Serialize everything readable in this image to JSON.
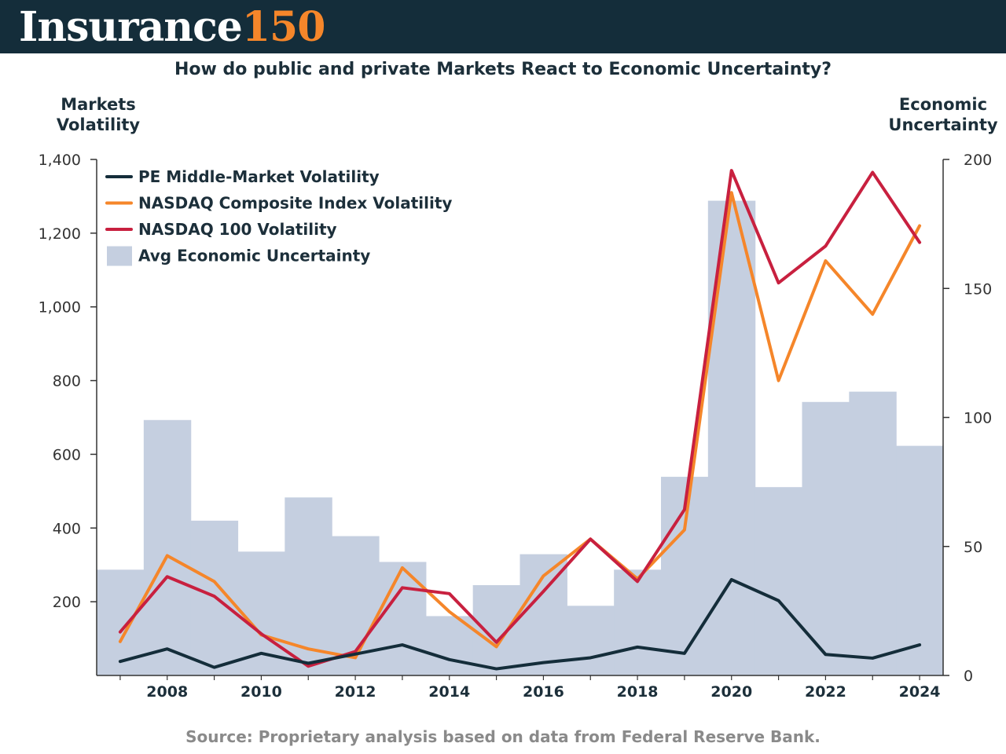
{
  "brand": {
    "name": "Insurance",
    "number": "150"
  },
  "title": "How do public and private Markets React to Economic Uncertainty?",
  "left_axis_title": "Markets\nVolatility",
  "right_axis_title": "Economic\nUncertainty",
  "source": "Source: Proprietary analysis based on data from Federal Reserve Bank.",
  "colors": {
    "header": "#142d3a",
    "brand_accent": "#f5862a",
    "pe": "#142d3a",
    "nasdaq_composite": "#f5862a",
    "nasdaq_100": "#c8203f",
    "uncertainty": "#c5cfe0"
  },
  "chart_data": {
    "type": "bar+line",
    "title": "How do public and private Markets React to Economic Uncertainty?",
    "years": [
      2007,
      2008,
      2009,
      2010,
      2011,
      2012,
      2013,
      2014,
      2015,
      2016,
      2017,
      2018,
      2019,
      2020,
      2021,
      2022,
      2023,
      2024
    ],
    "x_tick_labels": [
      "2008",
      "2010",
      "2012",
      "2014",
      "2016",
      "2018",
      "2020",
      "2022",
      "2024"
    ],
    "y_left": {
      "label": "Markets Volatility",
      "range": [
        0,
        1400
      ],
      "ticks": [
        200,
        400,
        600,
        800,
        1000,
        1200,
        1400
      ],
      "tick_labels": [
        "200",
        "400",
        "600",
        "800",
        "1,000",
        "1,200",
        "1,400"
      ]
    },
    "y_right": {
      "label": "Economic Uncertainty",
      "range": [
        0,
        200
      ],
      "ticks": [
        0,
        50,
        100,
        150,
        200
      ],
      "tick_labels": [
        "0",
        "50",
        "100",
        "150",
        "200"
      ]
    },
    "bars": {
      "name": "Avg Economic Uncertainty",
      "axis": "right",
      "values": [
        41,
        99,
        60,
        48,
        69,
        54,
        44,
        23,
        35,
        47,
        27,
        41,
        77,
        184,
        73,
        106,
        110,
        89
      ]
    },
    "series": [
      {
        "name": "PE Middle-Market Volatility",
        "axis": "left",
        "values": [
          38,
          72,
          22,
          60,
          33,
          58,
          83,
          43,
          18,
          35,
          48,
          77,
          60,
          260,
          203,
          57,
          47,
          83
        ]
      },
      {
        "name": "NASDAQ Composite Index Volatility",
        "axis": "left",
        "values": [
          92,
          325,
          255,
          110,
          72,
          48,
          292,
          173,
          78,
          270,
          370,
          262,
          395,
          1310,
          800,
          1125,
          980,
          1220
        ]
      },
      {
        "name": "NASDAQ 100 Volatility",
        "axis": "left",
        "values": [
          118,
          268,
          215,
          113,
          25,
          65,
          238,
          222,
          90,
          228,
          370,
          255,
          450,
          1370,
          1065,
          1165,
          1365,
          1175
        ]
      }
    ],
    "legend_position": "top-left"
  }
}
